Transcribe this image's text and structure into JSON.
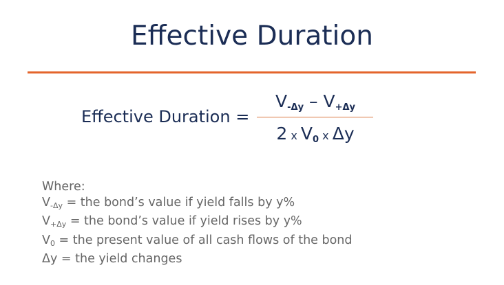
{
  "title": "Effective Duration",
  "formula": {
    "lhs": "Effective Duration =",
    "numerator": {
      "v1": "V",
      "s1": "-Δy",
      "minus": " – ",
      "v2": "V",
      "s2": "+Δy"
    },
    "denominator": {
      "two": "2",
      "x1": " x ",
      "v": "V",
      "s": "0",
      "x2": " x ",
      "dy": "Δy"
    }
  },
  "where": {
    "heading": "Where:",
    "items": [
      {
        "sym": "V",
        "sub": "-Δy",
        "text": " = the bond’s value if yield falls by y%"
      },
      {
        "sym": "V",
        "sub": "+Δy",
        "text": " = the bond’s value if yield rises by y%"
      },
      {
        "sym": "V",
        "sub": "0",
        "text": " = the present value of all cash flows of the bond"
      },
      {
        "sym": "Δy",
        "sub": "",
        "text": " = the yield changes"
      }
    ]
  },
  "colors": {
    "navy": "#1b2d55",
    "orange": "#e4652c",
    "gray": "#666666"
  }
}
